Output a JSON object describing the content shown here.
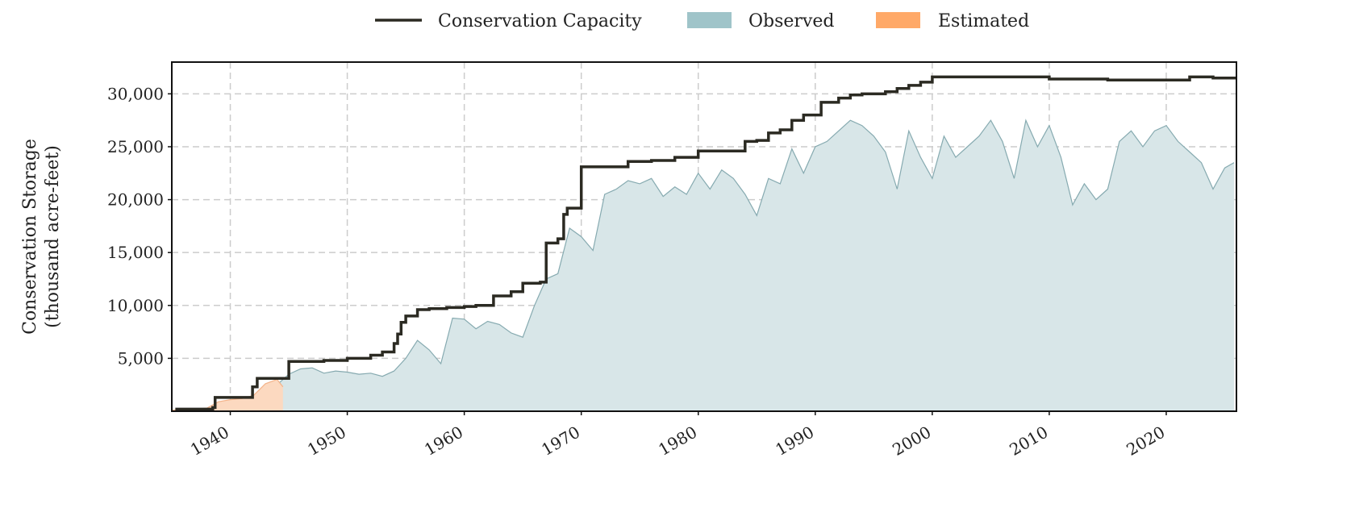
{
  "chart_data": {
    "type": "area",
    "title": "",
    "xlabel": "",
    "ylabel_lines": [
      "Conservation Storage",
      "(thousand acre-feet)"
    ],
    "xlim": [
      1935,
      2026
    ],
    "ylim": [
      0,
      33000
    ],
    "x_ticks": [
      1940,
      1950,
      1960,
      1970,
      1980,
      1990,
      2000,
      2010,
      2020
    ],
    "x_tick_labels": [
      "1940",
      "1950",
      "1960",
      "1970",
      "1980",
      "1990",
      "2000",
      "2010",
      "2020"
    ],
    "y_ticks": [
      5000,
      10000,
      15000,
      20000,
      25000,
      30000
    ],
    "y_tick_labels": [
      "5,000",
      "10,000",
      "15,000",
      "20,000",
      "25,000",
      "30,000"
    ],
    "grid": true,
    "legend_placement": "top-center",
    "legend": [
      {
        "label": "Conservation Capacity",
        "kind": "line",
        "color": "#2b2a22"
      },
      {
        "label": "Observed",
        "kind": "patch",
        "color": "#9fc4c9"
      },
      {
        "label": "Estimated",
        "kind": "patch",
        "color": "#ffa968"
      }
    ],
    "series": [
      {
        "name": "Conservation Capacity",
        "kind": "step",
        "color": "#2b2a22",
        "x": [
          1935.3,
          1938.5,
          1938.7,
          1941.7,
          1941.9,
          1942.3,
          1945.0,
          1948.0,
          1949.0,
          1950.0,
          1952.0,
          1953.0,
          1954.0,
          1954.3,
          1954.6,
          1955.0,
          1956.0,
          1957.0,
          1958.5,
          1960.0,
          1961.0,
          1962.5,
          1964.0,
          1965.0,
          1966.5,
          1967.0,
          1968.0,
          1968.5,
          1968.8,
          1970.0,
          1972.0,
          1974.0,
          1976.0,
          1978.0,
          1980.0,
          1984.0,
          1985.0,
          1986.0,
          1987.0,
          1988.0,
          1989.0,
          1990.5,
          1992.0,
          1993.0,
          1994.0,
          1996.0,
          1997.0,
          1998.0,
          1999.0,
          2000.0,
          2005.0,
          2010.0,
          2015.0,
          2020.0,
          2022.0,
          2024.0,
          2026.0
        ],
        "y": [
          200,
          350,
          1300,
          1300,
          2300,
          3100,
          4700,
          4800,
          4800,
          5000,
          5300,
          5600,
          6400,
          7300,
          8400,
          9000,
          9600,
          9700,
          9800,
          9900,
          10000,
          10900,
          11300,
          12100,
          12200,
          15900,
          16300,
          18600,
          19200,
          23100,
          23100,
          23600,
          23700,
          24000,
          24600,
          25500,
          25600,
          26300,
          26600,
          27500,
          28000,
          29200,
          29600,
          29900,
          30000,
          30200,
          30500,
          30800,
          31100,
          31600,
          31600,
          31400,
          31300,
          31300,
          31600,
          31500,
          31500
        ]
      },
      {
        "name": "Observed",
        "kind": "area",
        "color": "#9fc4c9",
        "x": [
          1935.0,
          1938.0,
          1940.0,
          1942.0,
          1943.0,
          1944.0,
          1945.0,
          1946.0,
          1947.0,
          1948.0,
          1949.0,
          1950.0,
          1951.0,
          1952.0,
          1953.0,
          1954.0,
          1955.0,
          1956.0,
          1957.0,
          1958.0,
          1959.0,
          1960.0,
          1961.0,
          1962.0,
          1963.0,
          1964.0,
          1965.0,
          1966.0,
          1967.0,
          1968.0,
          1969.0,
          1970.0,
          1971.0,
          1972.0,
          1973.0,
          1974.0,
          1975.0,
          1976.0,
          1977.0,
          1978.0,
          1979.0,
          1980.0,
          1981.0,
          1982.0,
          1983.0,
          1984.0,
          1985.0,
          1986.0,
          1987.0,
          1988.0,
          1989.0,
          1990.0,
          1991.0,
          1992.0,
          1993.0,
          1994.0,
          1995.0,
          1996.0,
          1997.0,
          1998.0,
          1999.0,
          2000.0,
          2001.0,
          2002.0,
          2003.0,
          2004.0,
          2005.0,
          2006.0,
          2007.0,
          2008.0,
          2009.0,
          2010.0,
          2011.0,
          2012.0,
          2013.0,
          2014.0,
          2015.0,
          2016.0,
          2017.0,
          2018.0,
          2019.0,
          2020.0,
          2021.0,
          2022.0,
          2023.0,
          2024.0,
          2025.0,
          2025.8
        ],
        "y": [
          100,
          150,
          600,
          900,
          1600,
          2500,
          3500,
          4000,
          4100,
          3600,
          3800,
          3700,
          3500,
          3600,
          3300,
          3800,
          5000,
          6700,
          5800,
          4500,
          8800,
          8700,
          7800,
          8500,
          8200,
          7400,
          7000,
          10000,
          12500,
          13000,
          17300,
          16500,
          15200,
          20500,
          21000,
          21800,
          21500,
          22000,
          20300,
          21200,
          20500,
          22500,
          21000,
          22800,
          22000,
          20500,
          18500,
          22000,
          21500,
          24800,
          22500,
          25000,
          25500,
          26500,
          27500,
          27000,
          26000,
          24500,
          21000,
          26500,
          24000,
          22000,
          26000,
          24000,
          25000,
          26000,
          27500,
          25500,
          22000,
          27500,
          25000,
          27000,
          24000,
          19500,
          21500,
          20000,
          21000,
          25500,
          26500,
          25000,
          26500,
          27000,
          25500,
          24500,
          23500,
          21000,
          23000,
          23500
        ]
      },
      {
        "name": "Estimated",
        "kind": "area",
        "color": "#ffa968",
        "x": [
          1935.0,
          1938.0,
          1939.0,
          1940.0,
          1941.0,
          1942.0,
          1943.0,
          1944.0,
          1944.5
        ],
        "y": [
          100,
          300,
          900,
          1100,
          1200,
          1500,
          2600,
          3000,
          2300
        ]
      }
    ]
  }
}
